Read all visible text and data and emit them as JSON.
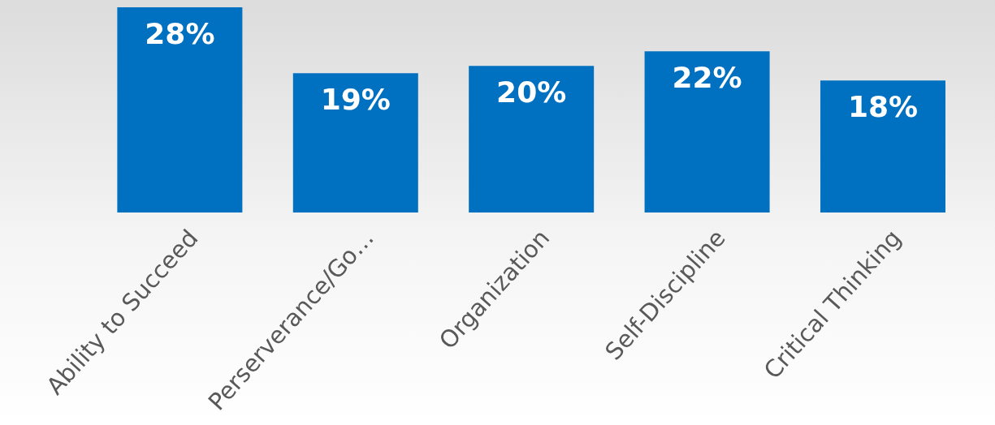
{
  "chart_data": {
    "type": "bar",
    "categories": [
      "Ability to Succeed",
      "Perserverance/Go…",
      "Organization",
      "Self-Discipline",
      "Critical Thinking"
    ],
    "values": [
      28,
      19,
      20,
      22,
      18
    ],
    "color": "#0070c0",
    "value_labels": [
      "28%",
      "19%",
      "20%",
      "22%",
      "18%"
    ],
    "tick_labels": "x"
  }
}
